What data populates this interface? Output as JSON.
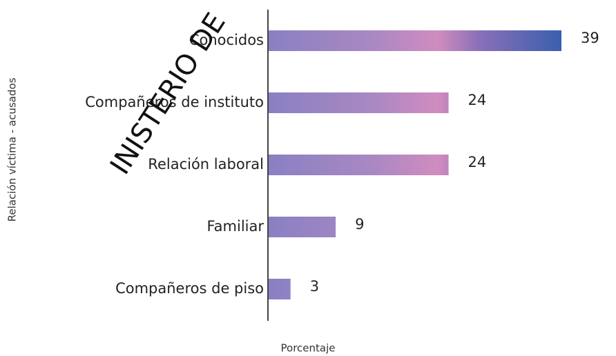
{
  "chart_data": {
    "type": "bar",
    "orientation": "horizontal",
    "watermark": "INISTERIO DE",
    "xlabel": "Porcentaje",
    "ylabel": "Relación víctima - acusados",
    "categories": [
      "Conocidos",
      "Compañeros de instituto",
      "Relación laboral",
      "Familiar",
      "Compañeros de piso"
    ],
    "values": [
      39,
      24,
      24,
      9,
      3
    ]
  }
}
